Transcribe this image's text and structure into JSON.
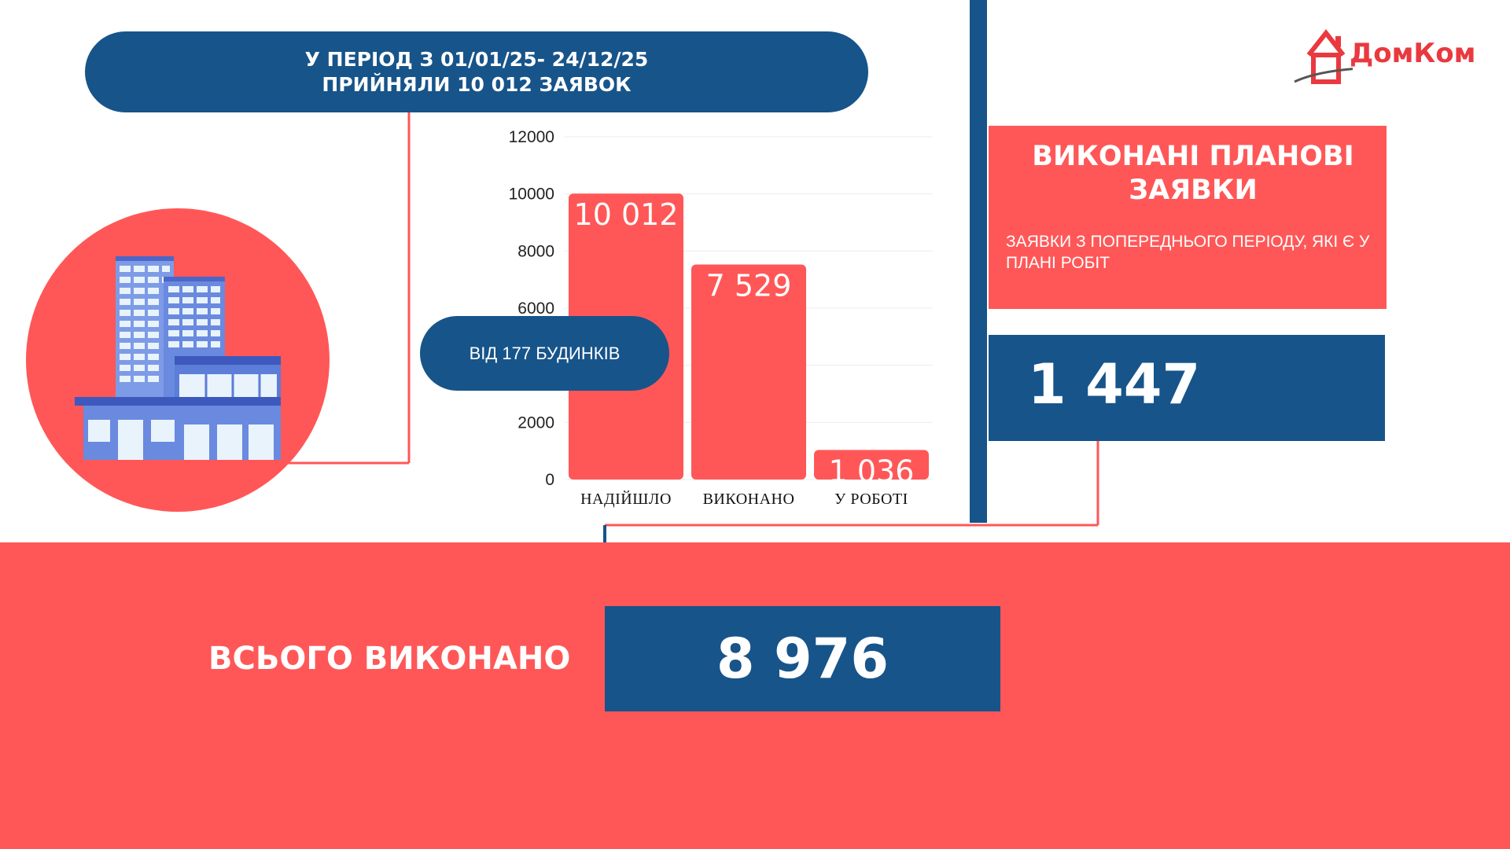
{
  "header": {
    "line1": "У ПЕРІОД З 01/01/25- 24/12/25",
    "line2": "ПРИЙНЯЛИ 10 012 ЗАЯВОК"
  },
  "houses_label": "ВІД 177 БУДИНКІВ",
  "planned": {
    "title_line1": "ВИКОНАНІ ПЛАНОВІ",
    "title_line2": "ЗАЯВКИ",
    "subtitle": "ЗАЯВКИ З ПОПЕРЕДНЬОГО ПЕРІОДУ, ЯКІ Є У ПЛАНІ РОБІТ",
    "value": "1 447"
  },
  "total": {
    "label": "ВСЬОГО ВИКОНАНО",
    "value": "8 976"
  },
  "logo": {
    "text": "ДомКом",
    "icon": "house-icon"
  },
  "building_icon": "office-building-icon",
  "colors": {
    "blue": "#17548a",
    "coral": "#ff5757",
    "logo_red": "#e9393f"
  },
  "chart_data": {
    "type": "bar",
    "categories": [
      "НАДІЙШЛО",
      "ВИКОНАНО",
      "У РОБОТІ"
    ],
    "values": [
      10012,
      7529,
      1036
    ],
    "data_labels": [
      "10 012",
      "7 529",
      "1 036"
    ],
    "yticks": [
      0,
      2000,
      6000,
      8000,
      10000,
      12000
    ],
    "ylim": [
      0,
      12000
    ],
    "grid": true,
    "bar_color": "#ff5757"
  }
}
